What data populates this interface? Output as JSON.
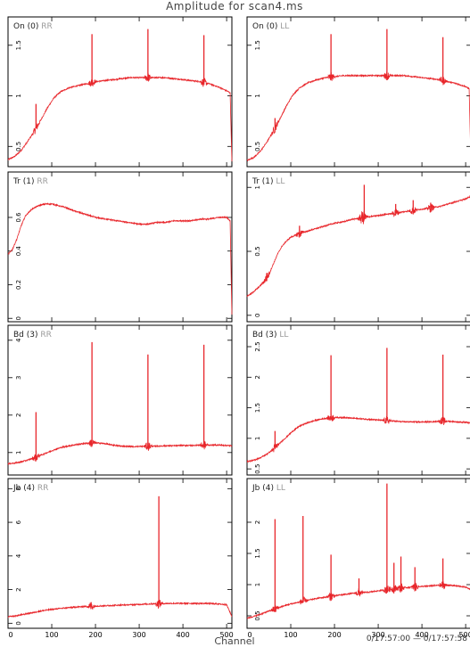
{
  "figure": {
    "title": "Amplitude for scan4.ms",
    "xlabel": "Channel",
    "time_range": "0/17:57:00 — 0/17:57:58",
    "line_color": "#e8262b",
    "label_dark": "#222222",
    "label_light": "#9a9a9a"
  },
  "chart_data": [
    {
      "type": "line",
      "panel_title_main": "On (0)",
      "panel_title_corr": "RR",
      "xlim": [
        0,
        512
      ],
      "ylim": [
        0.3,
        1.78
      ],
      "yticks": [
        0.5,
        1,
        1.5
      ],
      "ytick_labels": [
        "0.5",
        "1",
        "1.5"
      ],
      "xticks": [
        0,
        100,
        200,
        300,
        400,
        500
      ],
      "xtick_labels": [],
      "series": [
        {
          "x": [
            0,
            15,
            30,
            45,
            60,
            75,
            90,
            105,
            120,
            140,
            160,
            180,
            200,
            220,
            240,
            260,
            280,
            300,
            320,
            340,
            360,
            380,
            400,
            420,
            440,
            460,
            480,
            500,
            508,
            512
          ],
          "y": [
            0.37,
            0.4,
            0.46,
            0.55,
            0.65,
            0.76,
            0.88,
            0.98,
            1.04,
            1.08,
            1.1,
            1.12,
            1.14,
            1.15,
            1.16,
            1.17,
            1.18,
            1.18,
            1.18,
            1.18,
            1.18,
            1.17,
            1.16,
            1.15,
            1.14,
            1.12,
            1.09,
            1.05,
            1.03,
            0.35
          ],
          "spikes": [
            {
              "x": 64,
              "y": 0.92
            },
            {
              "x": 192,
              "y": 1.61
            },
            {
              "x": 320,
              "y": 1.66
            },
            {
              "x": 448,
              "y": 1.6
            }
          ]
        }
      ]
    },
    {
      "type": "line",
      "panel_title_main": "On (0)",
      "panel_title_corr": "LL",
      "xlim": [
        0,
        512
      ],
      "ylim": [
        0.3,
        1.78
      ],
      "yticks": [
        0.5,
        1,
        1.5
      ],
      "ytick_labels": [
        "0.5",
        "1",
        "1.5"
      ],
      "xticks": [
        0,
        100,
        200,
        300,
        400,
        500
      ],
      "xtick_labels": [],
      "series": [
        {
          "x": [
            0,
            15,
            30,
            45,
            60,
            75,
            90,
            105,
            120,
            140,
            160,
            180,
            200,
            220,
            240,
            260,
            280,
            300,
            320,
            340,
            360,
            380,
            400,
            420,
            440,
            460,
            480,
            500,
            508,
            512
          ],
          "y": [
            0.36,
            0.39,
            0.45,
            0.54,
            0.65,
            0.77,
            0.9,
            1.01,
            1.08,
            1.13,
            1.16,
            1.18,
            1.19,
            1.2,
            1.2,
            1.2,
            1.2,
            1.2,
            1.2,
            1.2,
            1.2,
            1.19,
            1.18,
            1.17,
            1.16,
            1.14,
            1.12,
            1.09,
            1.07,
            0.35
          ],
          "spikes": [
            {
              "x": 64,
              "y": 0.78
            },
            {
              "x": 192,
              "y": 1.61
            },
            {
              "x": 320,
              "y": 1.66
            },
            {
              "x": 448,
              "y": 1.58
            }
          ]
        }
      ]
    },
    {
      "type": "line",
      "panel_title_main": "Tr (1)",
      "panel_title_corr": "RR",
      "xlim": [
        0,
        512
      ],
      "ylim": [
        -0.02,
        0.87
      ],
      "yticks": [
        0,
        0.2,
        0.4,
        0.6
      ],
      "ytick_labels": [
        "0",
        "0.2",
        "0.4",
        "0.6"
      ],
      "xticks": [
        0,
        100,
        200,
        300,
        400,
        500
      ],
      "xtick_labels": [],
      "series": [
        {
          "x": [
            0,
            10,
            20,
            30,
            40,
            55,
            70,
            85,
            100,
            115,
            130,
            150,
            175,
            200,
            225,
            250,
            275,
            300,
            320,
            340,
            360,
            380,
            400,
            420,
            440,
            460,
            480,
            500,
            508,
            512
          ],
          "y": [
            0.38,
            0.41,
            0.47,
            0.55,
            0.61,
            0.65,
            0.67,
            0.68,
            0.68,
            0.67,
            0.66,
            0.64,
            0.62,
            0.6,
            0.59,
            0.58,
            0.57,
            0.56,
            0.56,
            0.57,
            0.57,
            0.58,
            0.58,
            0.58,
            0.59,
            0.59,
            0.6,
            0.6,
            0.58,
            0.02
          ],
          "spikes": []
        }
      ]
    },
    {
      "type": "line",
      "panel_title_main": "Tr (1)",
      "panel_title_corr": "LL",
      "xlim": [
        0,
        512
      ],
      "ylim": [
        -0.05,
        1.12
      ],
      "yticks": [
        0,
        0.5,
        1
      ],
      "ytick_labels": [
        "0",
        "0.5",
        "1"
      ],
      "xticks": [
        0,
        100,
        200,
        300,
        400,
        500
      ],
      "xtick_labels": [],
      "series": [
        {
          "x": [
            0,
            10,
            20,
            30,
            40,
            50,
            60,
            70,
            80,
            90,
            100,
            120,
            140,
            160,
            180,
            200,
            220,
            240,
            260,
            280,
            300,
            320,
            340,
            360,
            380,
            400,
            420,
            440,
            460,
            480,
            500,
            512
          ],
          "y": [
            0.15,
            0.17,
            0.2,
            0.23,
            0.27,
            0.32,
            0.4,
            0.48,
            0.54,
            0.58,
            0.61,
            0.64,
            0.66,
            0.68,
            0.7,
            0.72,
            0.73,
            0.75,
            0.76,
            0.77,
            0.78,
            0.79,
            0.8,
            0.81,
            0.82,
            0.83,
            0.84,
            0.85,
            0.87,
            0.89,
            0.91,
            0.93
          ],
          "spikes": [
            {
              "x": 45,
              "y": 0.33
            },
            {
              "x": 120,
              "y": 0.7
            },
            {
              "x": 262,
              "y": 0.78
            },
            {
              "x": 268,
              "y": 1.02
            },
            {
              "x": 340,
              "y": 0.87
            },
            {
              "x": 380,
              "y": 0.9
            },
            {
              "x": 420,
              "y": 0.88
            }
          ]
        }
      ]
    },
    {
      "type": "line",
      "panel_title_main": "Bd (3)",
      "panel_title_corr": "RR",
      "xlim": [
        0,
        512
      ],
      "ylim": [
        0.4,
        4.4
      ],
      "yticks": [
        1,
        2,
        3,
        4
      ],
      "ytick_labels": [
        "1",
        "2",
        "3",
        "4"
      ],
      "xticks": [
        0,
        100,
        200,
        300,
        400,
        500
      ],
      "xtick_labels": [],
      "series": [
        {
          "x": [
            0,
            15,
            30,
            45,
            60,
            75,
            90,
            105,
            120,
            140,
            160,
            180,
            200,
            220,
            240,
            260,
            280,
            300,
            320,
            340,
            360,
            380,
            400,
            420,
            440,
            460,
            480,
            500,
            512
          ],
          "y": [
            0.7,
            0.72,
            0.75,
            0.8,
            0.86,
            0.93,
            1.0,
            1.07,
            1.13,
            1.18,
            1.22,
            1.25,
            1.26,
            1.24,
            1.2,
            1.17,
            1.16,
            1.16,
            1.17,
            1.17,
            1.18,
            1.18,
            1.19,
            1.19,
            1.2,
            1.2,
            1.2,
            1.19,
            1.18
          ],
          "spikes": [
            {
              "x": 64,
              "y": 2.08
            },
            {
              "x": 192,
              "y": 3.95
            },
            {
              "x": 320,
              "y": 3.62
            },
            {
              "x": 448,
              "y": 3.88
            }
          ]
        }
      ]
    },
    {
      "type": "line",
      "panel_title_main": "Bd (3)",
      "panel_title_corr": "LL",
      "xlim": [
        0,
        512
      ],
      "ylim": [
        0.4,
        2.85
      ],
      "yticks": [
        0.5,
        1,
        1.5,
        2,
        2.5
      ],
      "ytick_labels": [
        "0.5",
        "1",
        "1.5",
        "2",
        "2.5"
      ],
      "xticks": [
        0,
        100,
        200,
        300,
        400,
        500
      ],
      "xtick_labels": [],
      "series": [
        {
          "x": [
            0,
            15,
            30,
            45,
            60,
            75,
            90,
            105,
            120,
            140,
            160,
            180,
            200,
            220,
            240,
            260,
            280,
            300,
            320,
            340,
            360,
            380,
            400,
            420,
            440,
            460,
            480,
            500,
            512
          ],
          "y": [
            0.62,
            0.64,
            0.68,
            0.74,
            0.82,
            0.92,
            1.02,
            1.12,
            1.2,
            1.26,
            1.3,
            1.33,
            1.34,
            1.34,
            1.33,
            1.32,
            1.31,
            1.3,
            1.29,
            1.28,
            1.27,
            1.27,
            1.27,
            1.27,
            1.28,
            1.28,
            1.27,
            1.26,
            1.25
          ],
          "spikes": [
            {
              "x": 64,
              "y": 1.12
            },
            {
              "x": 192,
              "y": 2.36
            },
            {
              "x": 320,
              "y": 2.48
            },
            {
              "x": 448,
              "y": 2.37
            }
          ]
        }
      ]
    },
    {
      "type": "line",
      "panel_title_main": "Jb (4)",
      "panel_title_corr": "RR",
      "xlim": [
        0,
        512
      ],
      "ylim": [
        -0.3,
        8.6
      ],
      "yticks": [
        0,
        2,
        4,
        6,
        8
      ],
      "ytick_labels": [
        "0",
        "2",
        "4",
        "6",
        "8"
      ],
      "xticks": [
        0,
        100,
        200,
        300,
        400,
        500
      ],
      "xtick_labels": [
        "0",
        "100",
        "200",
        "300",
        "400",
        "500"
      ],
      "series": [
        {
          "x": [
            0,
            20,
            40,
            60,
            80,
            100,
            120,
            140,
            160,
            180,
            200,
            220,
            240,
            260,
            280,
            300,
            320,
            340,
            360,
            380,
            400,
            420,
            440,
            460,
            480,
            500,
            512
          ],
          "y": [
            0.38,
            0.45,
            0.55,
            0.65,
            0.75,
            0.82,
            0.88,
            0.93,
            0.97,
            1.0,
            1.02,
            1.04,
            1.06,
            1.08,
            1.1,
            1.12,
            1.14,
            1.16,
            1.17,
            1.18,
            1.18,
            1.18,
            1.18,
            1.17,
            1.15,
            1.1,
            0.4
          ],
          "spikes": [
            {
              "x": 345,
              "y": 7.55
            },
            {
              "x": 190,
              "y": 1.25
            }
          ]
        }
      ]
    },
    {
      "type": "line",
      "panel_title_main": "Jb (4)",
      "panel_title_corr": "LL",
      "xlim": [
        0,
        512
      ],
      "ylim": [
        0.3,
        2.7
      ],
      "yticks": [
        0.5,
        1,
        1.5,
        2
      ],
      "ytick_labels": [
        "0.5",
        "1",
        "1.5",
        "2"
      ],
      "xticks": [
        0,
        100,
        200,
        300,
        400,
        500
      ],
      "xtick_labels": [
        "0",
        "100",
        "200",
        "300",
        "400",
        "500"
      ],
      "series": [
        {
          "x": [
            0,
            20,
            40,
            60,
            80,
            100,
            120,
            140,
            160,
            180,
            200,
            220,
            240,
            260,
            280,
            300,
            320,
            340,
            360,
            380,
            400,
            420,
            440,
            460,
            480,
            500,
            512
          ],
          "y": [
            0.46,
            0.5,
            0.55,
            0.6,
            0.65,
            0.69,
            0.72,
            0.75,
            0.78,
            0.8,
            0.82,
            0.84,
            0.86,
            0.87,
            0.88,
            0.9,
            0.92,
            0.94,
            0.95,
            0.96,
            0.97,
            0.98,
            0.99,
            0.99,
            0.98,
            0.96,
            0.92
          ],
          "spikes": [
            {
              "x": 64,
              "y": 2.05
            },
            {
              "x": 128,
              "y": 2.1
            },
            {
              "x": 192,
              "y": 1.48
            },
            {
              "x": 256,
              "y": 1.1
            },
            {
              "x": 320,
              "y": 2.62
            },
            {
              "x": 336,
              "y": 1.35
            },
            {
              "x": 352,
              "y": 1.45
            },
            {
              "x": 384,
              "y": 1.28
            },
            {
              "x": 448,
              "y": 1.42
            }
          ]
        }
      ]
    }
  ]
}
